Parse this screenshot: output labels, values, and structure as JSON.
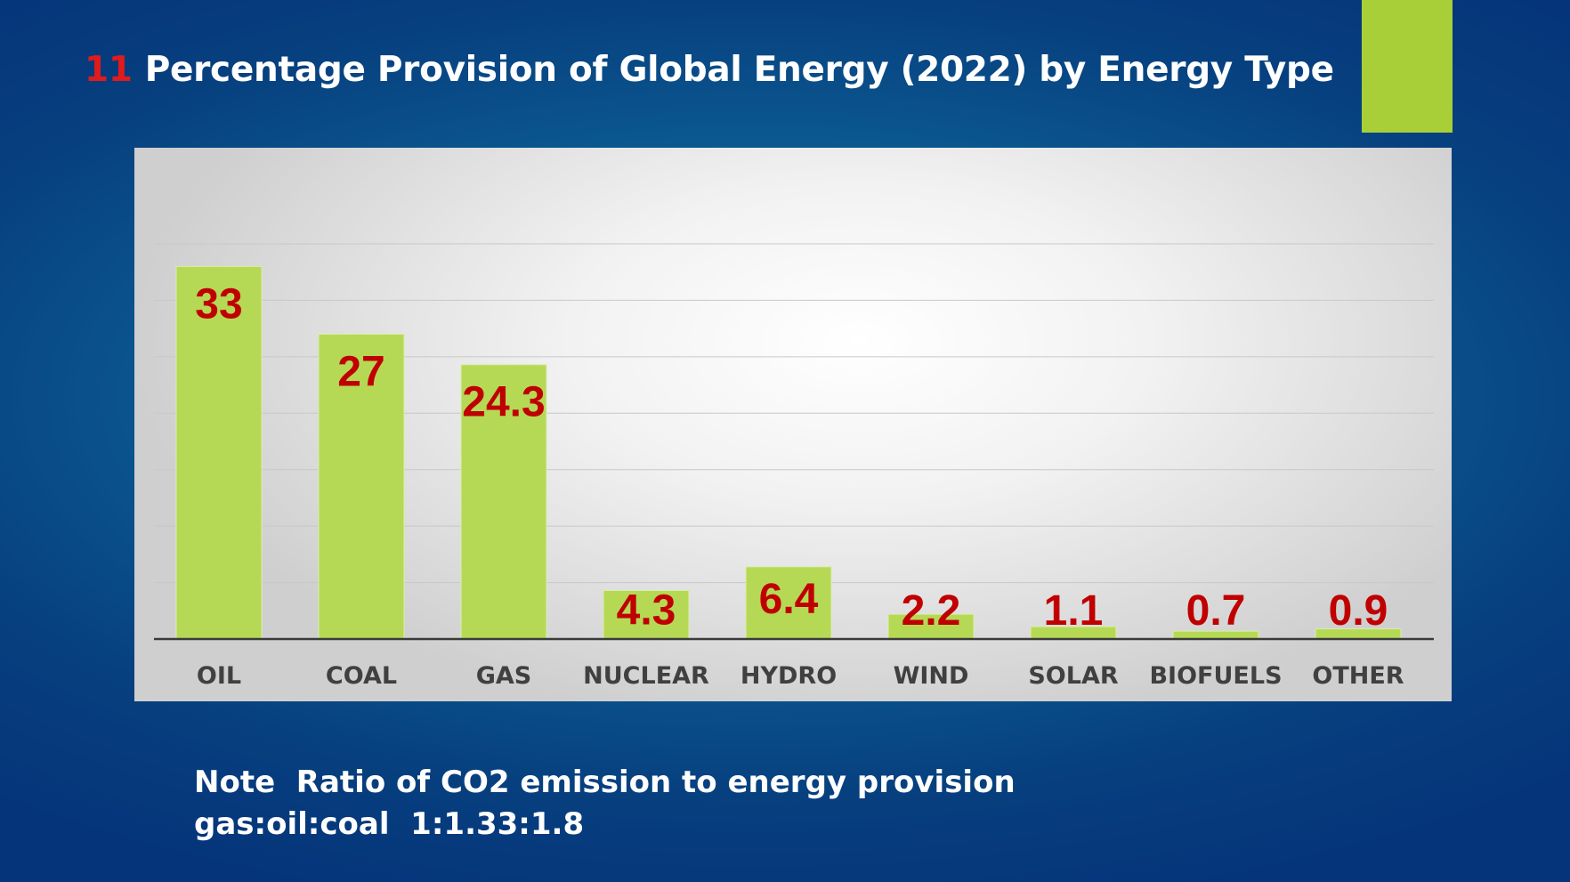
{
  "slide": {
    "number": "11",
    "title": "Percentage Provision of Global Energy  (2022) by Energy Type"
  },
  "note": {
    "line1": "Note  Ratio of CO2 emission to energy provision",
    "line2": "gas:oil:coal  1:1.33:1.8"
  },
  "colors": {
    "bar": "#b5d955",
    "bar_edge": "#dcedb0",
    "data_label": "#c00000",
    "axis_label": "#404040",
    "gridline": "#c8c8c8",
    "accent": "#a8cf38"
  },
  "chart_data": {
    "type": "bar",
    "title": "Percentage Provision of Global Energy (2022) by Energy Type",
    "categories": [
      "OIL",
      "COAL",
      "GAS",
      "NUCLEAR",
      "HYDRO",
      "WIND",
      "SOLAR",
      "BIOFUELS",
      "OTHER"
    ],
    "values": [
      33,
      27,
      24.3,
      4.3,
      6.4,
      2.2,
      1.1,
      0.7,
      0.9
    ],
    "value_labels": [
      "33",
      "27",
      "24.3",
      "4.3",
      "6.4",
      "2.2",
      "1.1",
      "0.7",
      "0.9"
    ],
    "xlabel": "",
    "ylabel": "",
    "ylim": [
      0,
      35
    ],
    "gridline_step": 5,
    "grid": true,
    "legend": "none"
  }
}
